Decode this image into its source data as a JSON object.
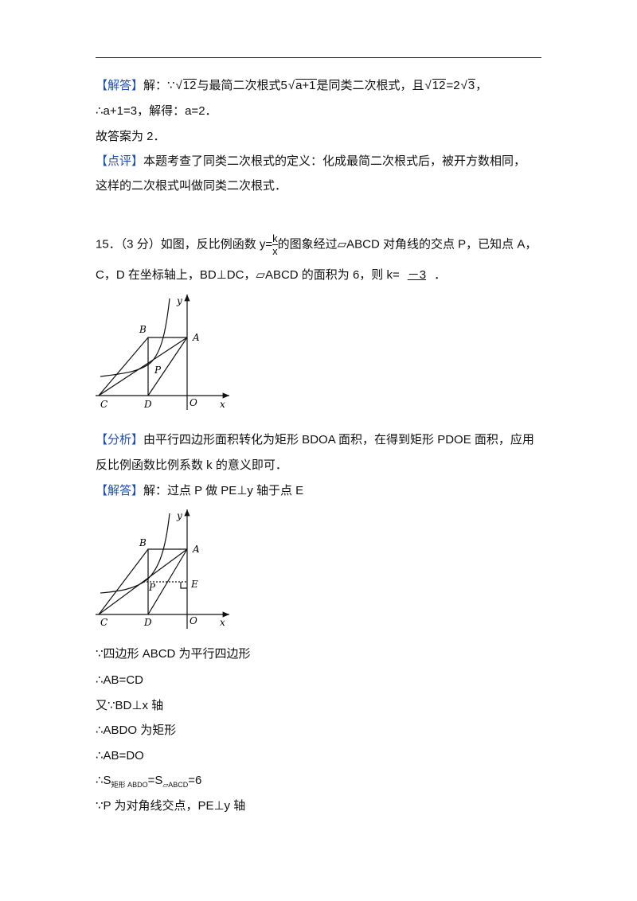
{
  "section1": {
    "line1": {
      "tag": "【解答】",
      "t1": "解：∵",
      "r1": "12",
      "t2": "与最简二次根式",
      "c2": "5",
      "r2": "a+1",
      "t3": "是同类二次根式，且",
      "r3": "12",
      "t4": "=2",
      "r4": "3",
      "t5": "，"
    },
    "line2": "∴a+1=3，解得：a=2．",
    "line3": "故答案为 2．",
    "comment": {
      "tag": "【点评】",
      "text": "本题考查了同类二次根式的定义：化成最简二次根式后，被开方数相同，",
      "text2": "这样的二次根式叫做同类二次根式．"
    }
  },
  "problem": {
    "line1": {
      "t1": "15．（3 分）如图，反比例函数 y=",
      "num": "k",
      "den": "x",
      "t2": "的图象经过▱ABCD 对角线的交点 P，已知点 A，"
    },
    "line2": {
      "t1": "C，D 在坐标轴上，BD⊥DC，▱ABCD 的面积为 6，则 k=",
      "answer": "－3",
      "t2": "．"
    }
  },
  "figure1": {
    "y": "y",
    "B": "B",
    "A": "A",
    "P": "P",
    "C": "C",
    "D": "D",
    "O": "O",
    "x": "x"
  },
  "analysis": {
    "tag": "【分析】",
    "text": "由平行四边形面积转化为矩形 BDOA 面积，在得到矩形 PDOE 面积，应用",
    "text2": "反比例函数比例系数 k 的意义即可．"
  },
  "solution": {
    "tag": "【解答】",
    "text": "解：过点 P 做 PE⊥y 轴于点 E"
  },
  "figure2": {
    "y": "y",
    "B": "B",
    "A": "A",
    "P": "P",
    "E": "E",
    "C": "C",
    "D": "D",
    "O": "O",
    "x": "x"
  },
  "steps": [
    "∵四边形 ABCD 为平行四边形",
    "∴AB=CD",
    "又∵BD⊥x 轴",
    "∴ABDO 为矩形",
    "∴AB=DO"
  ],
  "area_step": {
    "t1": "∴S",
    "s1": "矩形 ABDO",
    "t2": "=S",
    "s2": "▱ABCD",
    "t3": "=6"
  },
  "last_step": "∵P 为对角线交点，PE⊥y 轴"
}
